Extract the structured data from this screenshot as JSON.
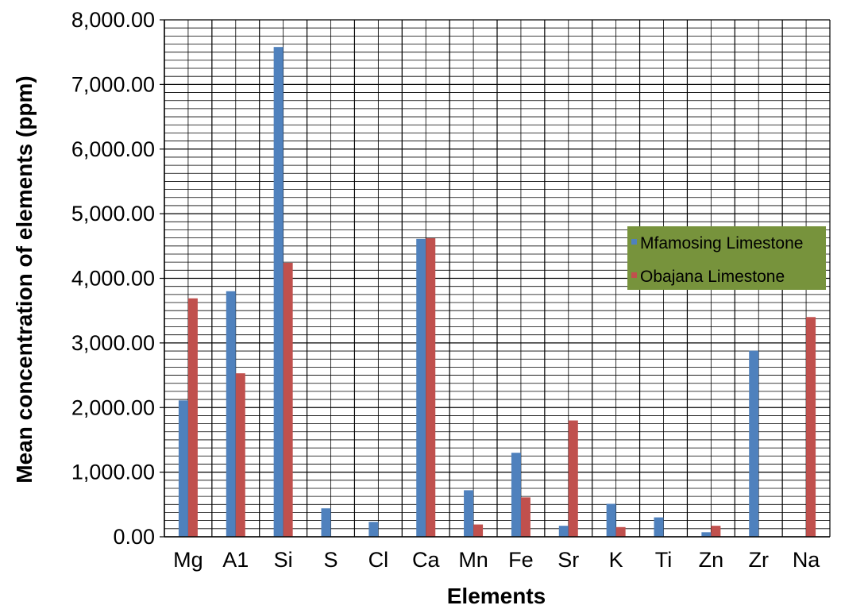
{
  "chart_data": {
    "type": "bar",
    "title": "",
    "xlabel": "Elements",
    "ylabel": "Mean concentration of elements (ppm)",
    "ylim": [
      0,
      8000
    ],
    "yticks": [
      "0.00",
      "1,000.00",
      "2,000.00",
      "3,000.00",
      "4,000.00",
      "5,000.00",
      "6,000.00",
      "7,000.00",
      "8,000.00"
    ],
    "categories": [
      "Mg",
      "A1",
      "Si",
      "S",
      "Cl",
      "Ca",
      "Mn",
      "Fe",
      "Sr",
      "K",
      "Ti",
      "Zn",
      "Zr",
      "Na"
    ],
    "grid": true,
    "legend": "right",
    "series": [
      {
        "name": "Mfamosing Limestone",
        "color": "#4f81bd",
        "values": [
          2110,
          3800,
          7580,
          440,
          230,
          4610,
          720,
          1300,
          170,
          510,
          300,
          70,
          2880,
          0
        ]
      },
      {
        "name": "Obajana Limestone",
        "color": "#c0504d",
        "values": [
          3690,
          2530,
          4240,
          0,
          0,
          4620,
          190,
          610,
          1800,
          150,
          0,
          170,
          0,
          3400
        ]
      }
    ],
    "legend_bg": "#77933c"
  }
}
